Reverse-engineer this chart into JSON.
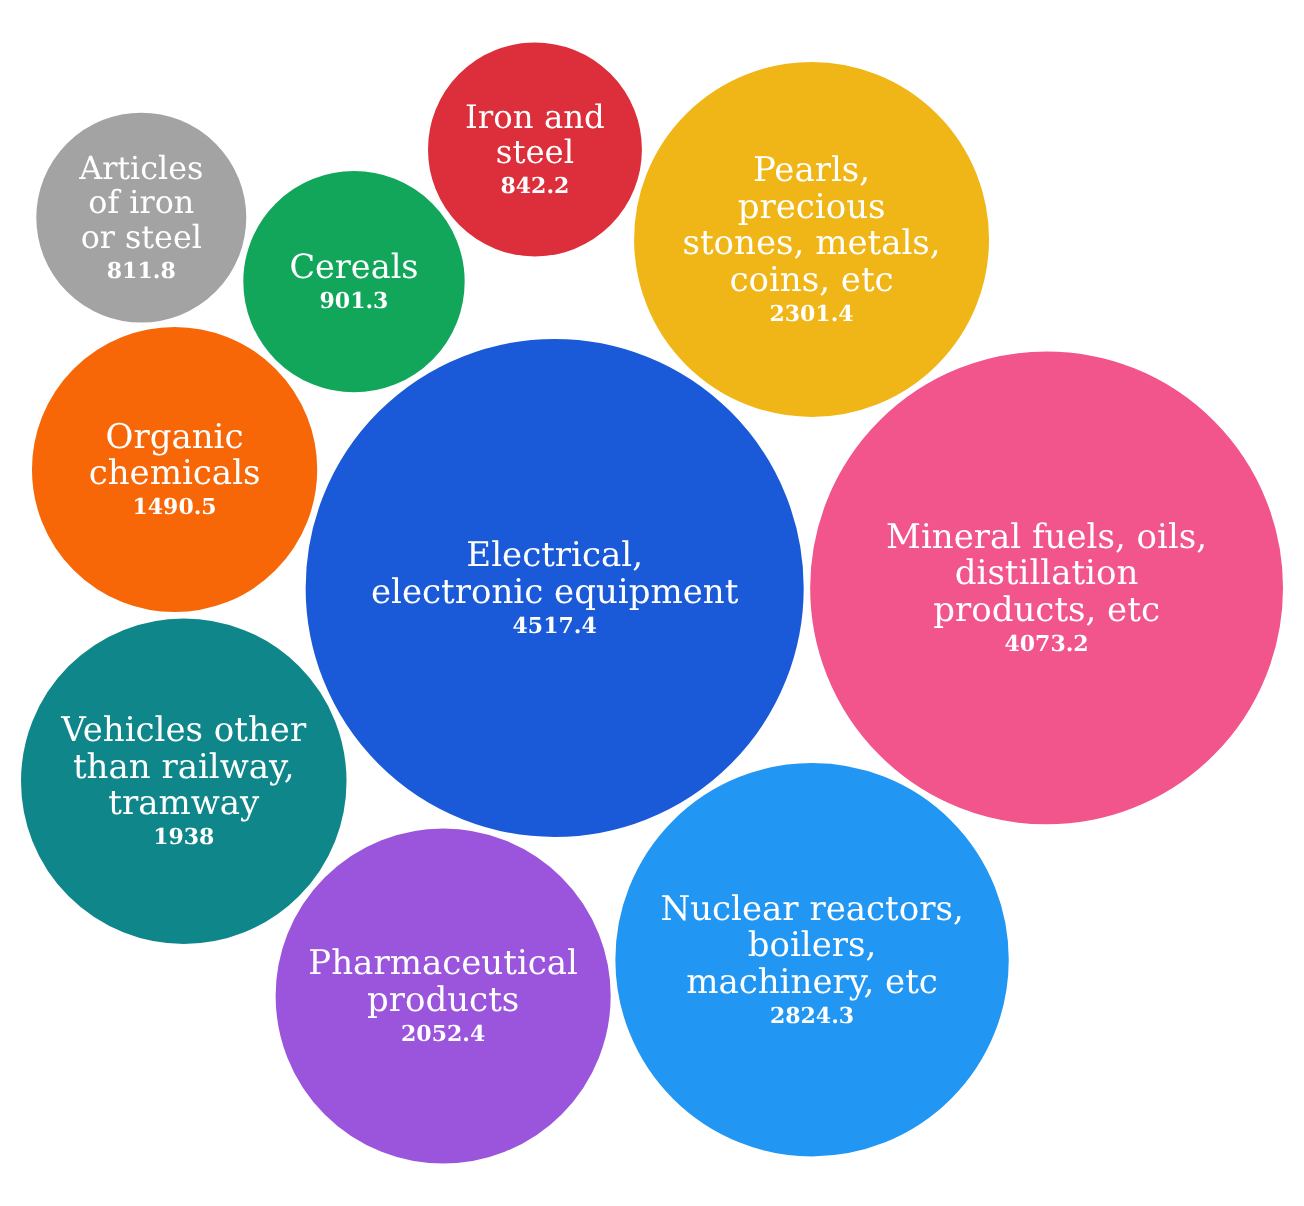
{
  "chart_data": {
    "type": "other",
    "categories": [
      "Electrical, electronic equipment",
      "Mineral fuels, oils, distillation products, etc",
      "Nuclear reactors, boilers, machinery, etc",
      "Pearls, precious stones, metals, coins, etc",
      "Pharmaceutical products",
      "Vehicles other than railway, tramway",
      "Organic chemicals",
      "Cereals",
      "Iron and steel",
      "Articles of iron or steel"
    ],
    "values": [
      4517.4,
      4073.2,
      2824.3,
      2301.4,
      2052.4,
      1938,
      1490.5,
      901.3,
      842.2,
      811.8
    ],
    "colors": [
      "#1a5ad8",
      "#f2548c",
      "#2196f3",
      "#f0b618",
      "#9b55dc",
      "#0f878a",
      "#f76707",
      "#11a65a",
      "#dc2f3b",
      "#a3a3a3"
    ],
    "data_labels": true
  }
}
